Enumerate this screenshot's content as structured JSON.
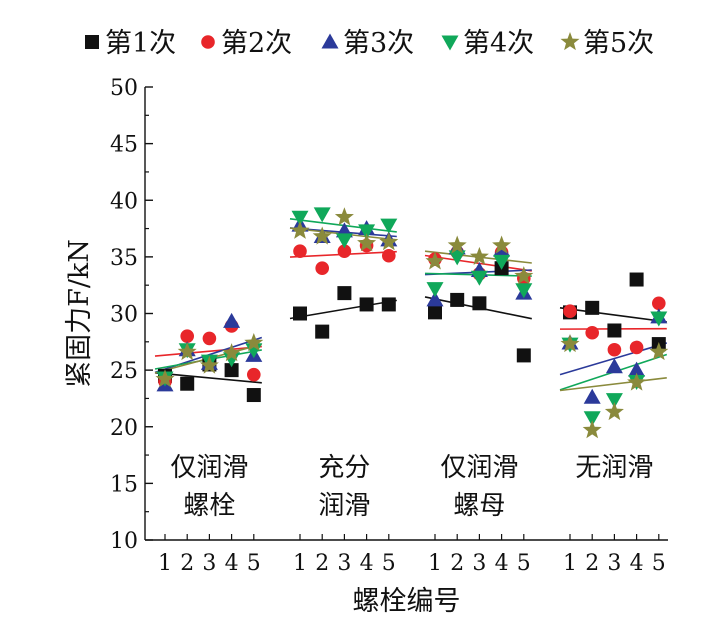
{
  "chart_data": {
    "type": "scatter",
    "title": "",
    "xlabel": "螺栓编号",
    "ylabel": "紧固力F/kN",
    "ylim": [
      10,
      50
    ],
    "yticks": [
      10,
      15,
      20,
      25,
      30,
      35,
      40,
      45,
      50
    ],
    "grid": false,
    "legend_position": "top",
    "bolt_labels": [
      "1",
      "2",
      "3",
      "4",
      "5"
    ],
    "groups": [
      {
        "label_lines": [
          "仅润滑",
          "螺栓"
        ]
      },
      {
        "label_lines": [
          "充分",
          "润滑"
        ]
      },
      {
        "label_lines": [
          "仅润滑",
          "螺母"
        ]
      },
      {
        "label_lines": [
          "无润滑"
        ]
      }
    ],
    "series": [
      {
        "name": "第1次",
        "marker": "square",
        "color": "#111111",
        "values": [
          [
            24.5,
            23.8,
            25.5,
            25.0,
            22.8
          ],
          [
            30.0,
            28.4,
            31.8,
            30.8,
            30.8
          ],
          [
            30.1,
            31.2,
            30.9,
            34.0,
            26.3
          ],
          [
            30.1,
            30.5,
            28.5,
            33.0,
            27.3
          ]
        ]
      },
      {
        "name": "第2次",
        "marker": "circle",
        "color": "#e8262a",
        "values": [
          [
            24.0,
            28.0,
            27.8,
            28.9,
            24.6
          ],
          [
            35.5,
            34.0,
            35.5,
            36.0,
            35.1
          ],
          [
            34.8,
            35.4,
            33.5,
            35.4,
            33.1
          ],
          [
            30.2,
            28.3,
            26.8,
            27.0,
            30.9
          ]
        ]
      },
      {
        "name": "第3次",
        "marker": "triangle-up",
        "color": "#2b3a9a",
        "values": [
          [
            23.7,
            26.8,
            25.6,
            29.3,
            26.3
          ],
          [
            37.8,
            36.8,
            37.3,
            37.5,
            36.5
          ],
          [
            31.2,
            35.8,
            33.8,
            35.6,
            31.8
          ],
          [
            27.4,
            22.6,
            25.3,
            25.0,
            29.7
          ]
        ]
      },
      {
        "name": "第4次",
        "marker": "triangle-down",
        "color": "#10a85a",
        "values": [
          [
            24.3,
            26.8,
            25.8,
            26.0,
            26.8
          ],
          [
            38.5,
            38.8,
            36.5,
            37.3,
            37.8
          ],
          [
            32.2,
            35.0,
            33.2,
            34.6,
            32.1
          ],
          [
            27.3,
            20.8,
            22.4,
            24.0,
            29.6
          ]
        ]
      },
      {
        "name": "第5次",
        "marker": "star",
        "color": "#8a8a3c",
        "values": [
          [
            24.2,
            26.6,
            25.4,
            26.5,
            27.4
          ],
          [
            37.3,
            36.8,
            38.5,
            36.2,
            36.3
          ],
          [
            34.6,
            36.0,
            35.0,
            36.0,
            33.3
          ],
          [
            27.3,
            19.7,
            21.3,
            23.9,
            26.6
          ]
        ]
      }
    ]
  }
}
